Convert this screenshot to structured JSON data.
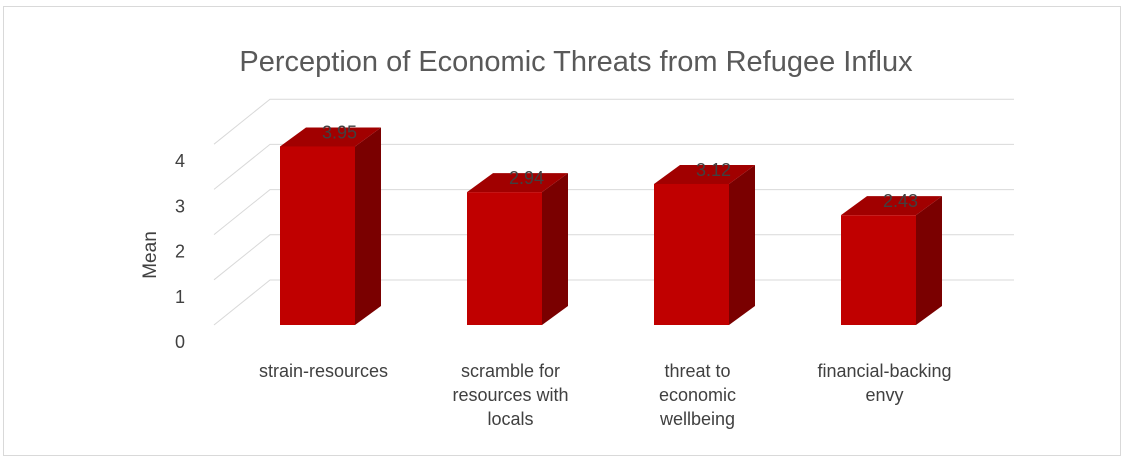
{
  "chart_data": {
    "type": "bar",
    "title": "Perception of Economic Threats from Refugee Influx",
    "ylabel": "Mean",
    "xlabel": "",
    "categories": [
      [
        "strain-resources"
      ],
      [
        "scramble for",
        "resources with",
        "locals"
      ],
      [
        "threat to",
        "economic",
        "wellbeing"
      ],
      [
        "financial-backing",
        "envy"
      ]
    ],
    "values": [
      3.95,
      2.94,
      3.12,
      2.43
    ],
    "value_labels": [
      "3.95",
      "2.94",
      "3.12",
      "2.43"
    ],
    "yticks": [
      "0",
      "1",
      "2",
      "3",
      "4"
    ],
    "ylim": [
      0,
      4
    ],
    "style": "3d-column",
    "grid": true,
    "legend": "none",
    "colors": {
      "bar_front": "#C00000",
      "bar_top": "#A10000",
      "bar_side": "#7A0000",
      "grid": "#d9d9d9",
      "text": "#404040",
      "title": "#595959"
    }
  }
}
